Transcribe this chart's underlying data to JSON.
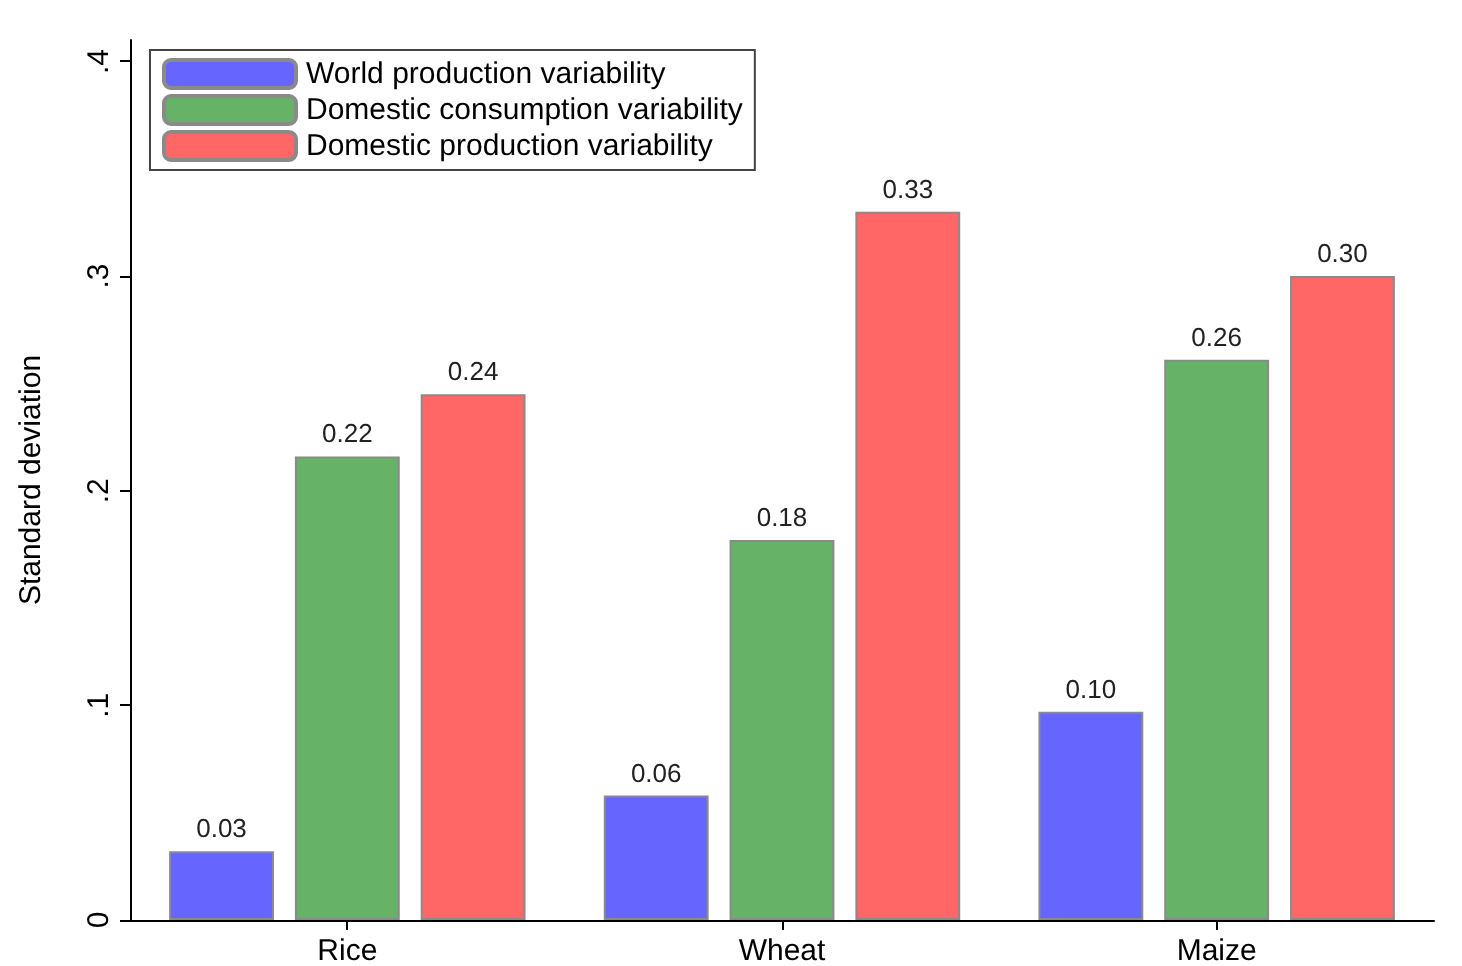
{
  "chart_data": {
    "type": "bar",
    "ylabel": "Standard deviation",
    "categories": [
      "Rice",
      "Wheat",
      "Maize"
    ],
    "series": [
      {
        "name": "World production variability",
        "color": "#6666ff",
        "values": [
          0.032,
          0.058,
          0.097
        ],
        "value_labels": [
          "0.03",
          "0.06",
          "0.10"
        ]
      },
      {
        "name": "Domestic consumption variability",
        "color": "#66b266",
        "values": [
          0.216,
          0.177,
          0.261
        ],
        "value_labels": [
          "0.22",
          "0.18",
          "0.26"
        ]
      },
      {
        "name": "Domestic production variability",
        "color": "#ff6666",
        "values": [
          0.245,
          0.33,
          0.3
        ],
        "value_labels": [
          "0.24",
          "0.33",
          "0.30"
        ]
      }
    ],
    "ylim": [
      0,
      0.41
    ],
    "yticks": [
      {
        "value": 0,
        "label": "0"
      },
      {
        "value": 0.1,
        "label": ".1"
      },
      {
        "value": 0.2,
        "label": ".2"
      },
      {
        "value": 0.3,
        "label": ".3"
      },
      {
        "value": 0.4,
        "label": ".4"
      }
    ],
    "grid": false,
    "legend": "top left"
  }
}
